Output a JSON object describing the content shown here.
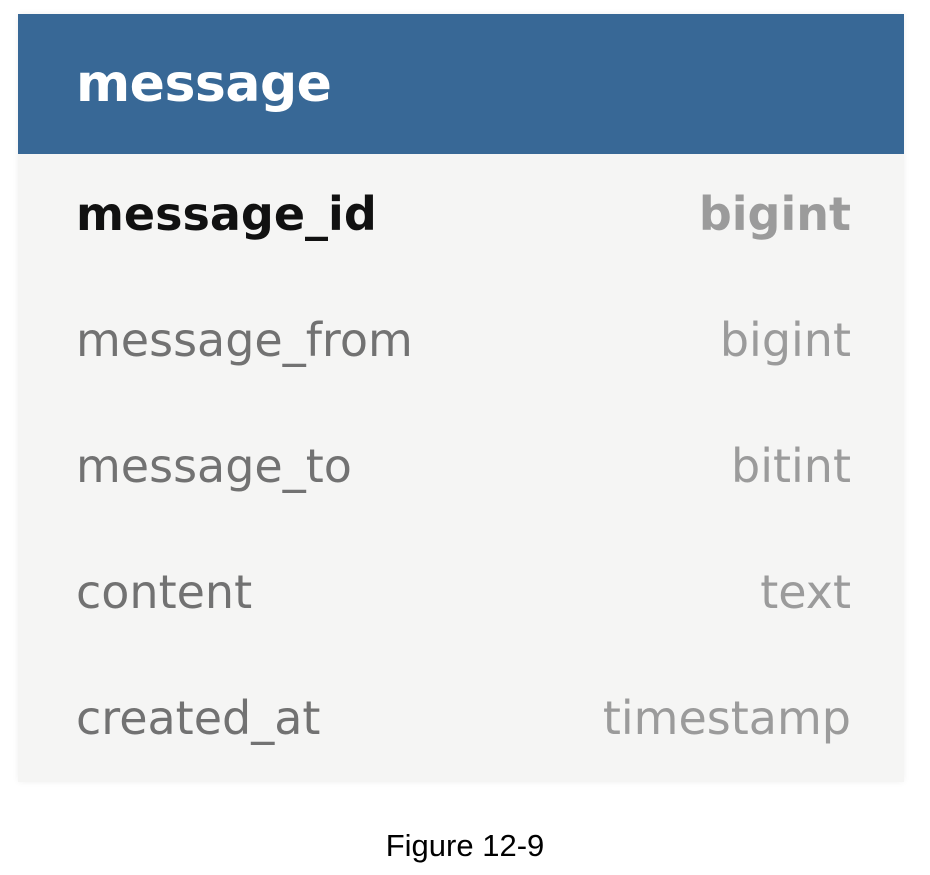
{
  "table": {
    "title": "message",
    "columns": [
      {
        "name": "message_id",
        "type": "bigint",
        "primary_key": true
      },
      {
        "name": "message_from",
        "type": "bigint",
        "primary_key": false
      },
      {
        "name": "message_to",
        "type": "bitint",
        "primary_key": false
      },
      {
        "name": "content",
        "type": "text",
        "primary_key": false
      },
      {
        "name": "created_at",
        "type": "timestamp",
        "primary_key": false
      }
    ]
  },
  "caption": "Figure 12-9",
  "colors": {
    "header": "#386896",
    "body": "#f5f5f4",
    "primary_key_text": "#111111",
    "column_text": "#727272",
    "type_text": "#9b9b9b"
  }
}
